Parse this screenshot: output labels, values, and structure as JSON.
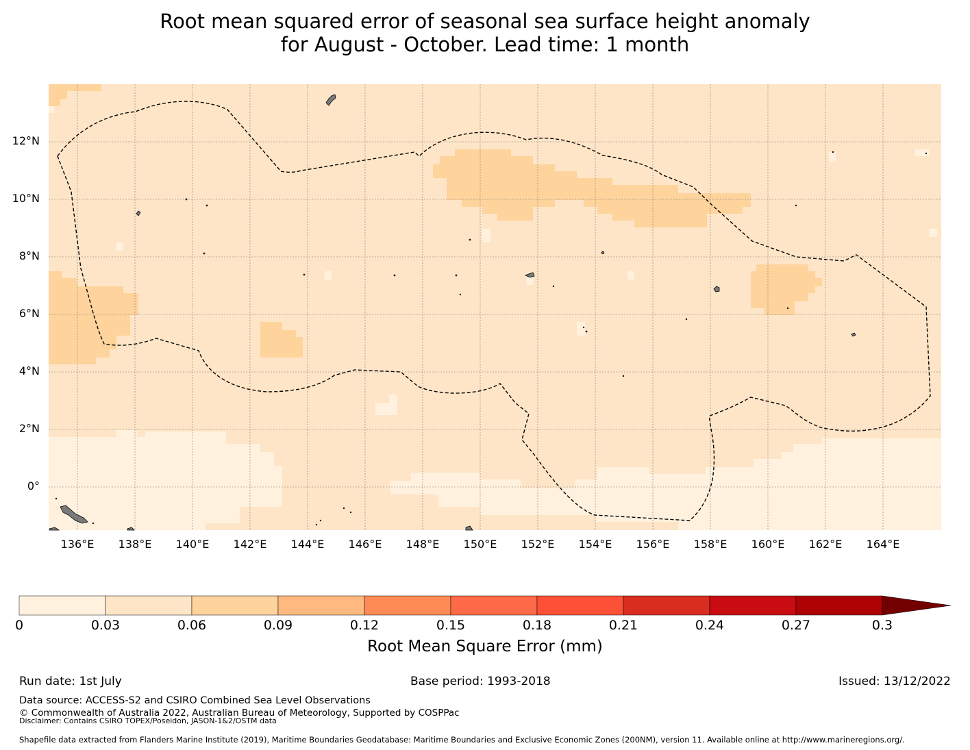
{
  "title": {
    "line1": "Root mean squared error of seasonal sea surface height anomaly",
    "line2": "for August - October. Lead time: 1 month"
  },
  "map": {
    "lon_range": [
      135,
      166
    ],
    "lat_range": [
      -1.5,
      14
    ],
    "lat_ticks": [
      "12°N",
      "10°N",
      "8°N",
      "6°N",
      "4°N",
      "2°N",
      "0°"
    ],
    "lon_ticks": [
      "136°E",
      "138°E",
      "140°E",
      "142°E",
      "144°E",
      "146°E",
      "148°E",
      "150°E",
      "152°E",
      "154°E",
      "156°E",
      "158°E",
      "160°E",
      "162°E",
      "164°E"
    ],
    "gridlines": true,
    "boundary": "dashed EEZ outline (Federated States of Micronesia)"
  },
  "colorbar": {
    "title": "Root Mean Square Error (mm)",
    "tick_labels": [
      "0",
      "0.03",
      "0.06",
      "0.09",
      "0.12",
      "0.15",
      "0.18",
      "0.21",
      "0.24",
      "0.27",
      "0.3"
    ],
    "colors": [
      "#fff1de",
      "#fee5c7",
      "#fed39c",
      "#fdb97e",
      "#fc8a55",
      "#fd6a47",
      "#fc5037",
      "#d92d20",
      "#c80c12",
      "#ae0204",
      "#730000"
    ],
    "extend": "max"
  },
  "footer": {
    "run_date": "Run date: 1st July",
    "base_period": "Base period: 1993-2018",
    "issued": "Issued: 13/12/2022",
    "data_source": "Data source: ACCESS-S2 and CSIRO Combined Sea Level Observations",
    "copyright": "© Commonwealth of Australia 2022, Australian Bureau of Meteorology, Supported by COSPPac",
    "disclaimer": "Disclaimer: Contains CSIRO TOPEX/Poseidon, JASON-1&2/OSTM data",
    "shapefile": "Shapefile data extracted from Flanders Marine Institute (2019), Maritime Boundaries Geodatabase: Maritime Boundaries and Exclusive Economic Zones (200NM), version 11. Available online at http://www.marineregions.org/."
  }
}
